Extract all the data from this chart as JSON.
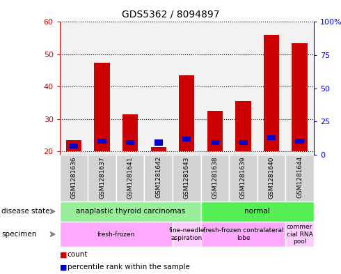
{
  "title": "GDS5362 / 8094897",
  "samples": [
    "GSM1281636",
    "GSM1281637",
    "GSM1281641",
    "GSM1281642",
    "GSM1281643",
    "GSM1281638",
    "GSM1281639",
    "GSM1281640",
    "GSM1281644"
  ],
  "count_values": [
    23.5,
    47.5,
    31.5,
    21.3,
    43.5,
    32.5,
    35.5,
    56.0,
    53.5
  ],
  "percentile_values": [
    21.0,
    22.5,
    22.0,
    21.8,
    23.0,
    22.0,
    22.0,
    23.5,
    22.5
  ],
  "blue_bar_heights": [
    1.5,
    1.5,
    1.5,
    2.0,
    1.5,
    1.5,
    1.5,
    1.5,
    1.5
  ],
  "ylim_left": [
    19,
    60
  ],
  "ylim_right": [
    0,
    100
  ],
  "yticks_left": [
    20,
    30,
    40,
    50,
    60
  ],
  "yticks_right": [
    0,
    25,
    50,
    75,
    100
  ],
  "ytick_labels_right": [
    "0",
    "25",
    "50",
    "75",
    "100%"
  ],
  "left_axis_color": "#cc0000",
  "right_axis_color": "#0000cc",
  "bar_color_red": "#cc0000",
  "bar_color_blue": "#0000cc",
  "disease_state_groups": [
    {
      "label": "anaplastic thyroid carcinomas",
      "start": 0,
      "end": 5,
      "color": "#99ee99"
    },
    {
      "label": "normal",
      "start": 5,
      "end": 9,
      "color": "#55ee55"
    }
  ],
  "specimen_groups": [
    {
      "label": "fresh-frozen",
      "start": 0,
      "end": 4,
      "color": "#ffaaff"
    },
    {
      "label": "fine-needle\naspiration",
      "start": 4,
      "end": 5,
      "color": "#ffccff"
    },
    {
      "label": "fresh-frozen contralateral\nlobe",
      "start": 5,
      "end": 8,
      "color": "#ffaaff"
    },
    {
      "label": "commer\ncial RNA\npool",
      "start": 8,
      "end": 9,
      "color": "#ffccff"
    }
  ],
  "bar_bottom": 20,
  "sample_box_color": "#d3d3d3",
  "sample_box_edge": "#aaaaaa"
}
